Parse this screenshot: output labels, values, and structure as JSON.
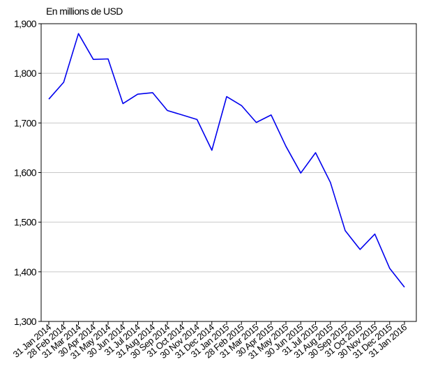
{
  "chart_data": {
    "type": "line",
    "unit_label": "En millions de USD",
    "x": [
      "31 Jan 2014",
      "28 Feb 2014",
      "31 Mar 2014",
      "30 Apr 2014",
      "31 May 2014",
      "30 Jun 2014",
      "31 Jul 2014",
      "31 Aug 2014",
      "30 Sep 2014",
      "31 Oct 2014",
      "30 Nov 2014",
      "31 Dec 2014",
      "31 Jan 2015",
      "28 Feb 2015",
      "31 Mar 2015",
      "30 Apr 2015",
      "31 May 2015",
      "30 Jun 2015",
      "31 Jul 2015",
      "31 Aug 2015",
      "30 Sep 2015",
      "31 Oct 2015",
      "30 Nov 2015",
      "31 Dec 2015",
      "31 Jan 2016"
    ],
    "series": [
      {
        "values": [
          1748,
          1782,
          1880,
          1828,
          1829,
          1739,
          1758,
          1761,
          1725,
          1716,
          1707,
          1645,
          1753,
          1735,
          1701,
          1716,
          1653,
          1599,
          1640,
          1580,
          1483,
          1445,
          1476,
          1407,
          1369
        ]
      }
    ],
    "ylim": [
      1300,
      1900
    ],
    "yticks": [
      "1,300",
      "1,400",
      "1,500",
      "1,600",
      "1,700",
      "1,800",
      "1,900"
    ],
    "ytick_values": [
      1300,
      1400,
      1500,
      1600,
      1700,
      1800,
      1900
    ],
    "grid": "horizontal",
    "colors": {
      "line": "#0000ee",
      "grid": "#c8c8c8",
      "axis": "#000000"
    }
  }
}
